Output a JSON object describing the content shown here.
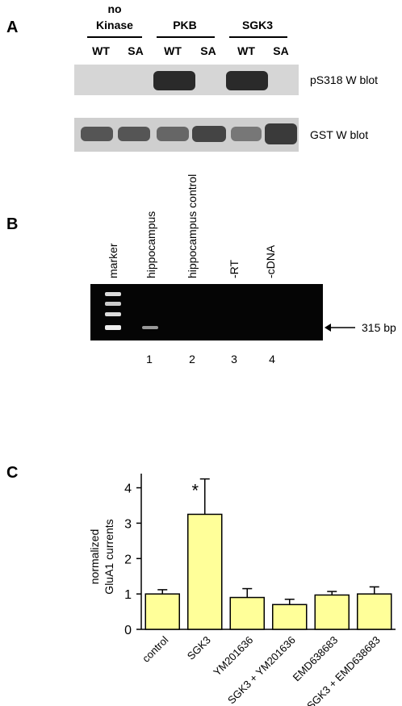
{
  "panel_a": {
    "label": "A",
    "groups": [
      {
        "name": [
          "no",
          "Kinase"
        ],
        "lanes": [
          "WT",
          "SA"
        ]
      },
      {
        "name": [
          "PKB"
        ],
        "lanes": [
          "WT",
          "SA"
        ]
      },
      {
        "name": [
          "SGK3"
        ],
        "lanes": [
          "WT",
          "SA"
        ]
      }
    ],
    "blots": [
      "pS318 W blot",
      "GST W blot"
    ]
  },
  "panel_b": {
    "label": "B",
    "lanes": [
      "marker",
      "hippocampus",
      "hippocampus control",
      "-RT",
      "-cDNA"
    ],
    "lane_numbers": [
      "1",
      "2",
      "3",
      "4"
    ],
    "size_label": "315 bp"
  },
  "panel_c": {
    "label": "C"
  },
  "chart_data": {
    "type": "bar",
    "ylabel": [
      "normalized",
      "GluA1 currents"
    ],
    "categories": [
      "control",
      "SGK3",
      "YM201636",
      "SGK3 + YM201636",
      "EMD638683",
      "SGK3 + EMD638683"
    ],
    "values": [
      1.0,
      3.25,
      0.9,
      0.7,
      0.97,
      1.0
    ],
    "errors": [
      0.12,
      1.0,
      0.25,
      0.15,
      0.1,
      0.2
    ],
    "annotations": [
      "",
      "*",
      "",
      "",
      "",
      ""
    ],
    "color": "#ffff99",
    "ylim": [
      0,
      4.4
    ],
    "yticks": [
      0,
      1,
      2,
      3,
      4
    ]
  }
}
